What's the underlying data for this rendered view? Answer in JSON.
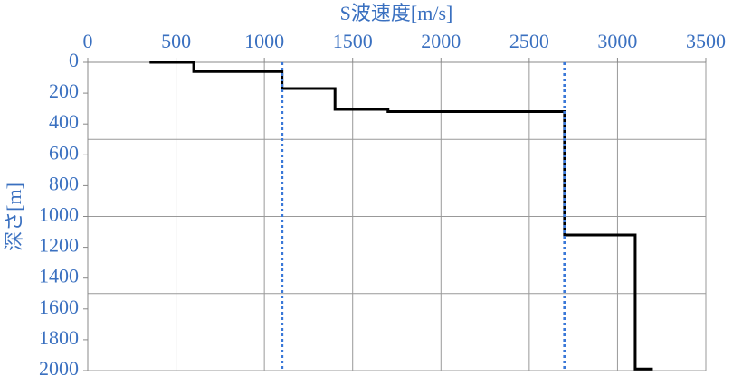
{
  "chart_data": {
    "type": "line",
    "x_label": "S波速度[m/s]",
    "y_label": "深さ[m]",
    "xlim": [
      0,
      3500
    ],
    "xticks": [
      0,
      500,
      1000,
      1500,
      2000,
      2500,
      3000,
      3500
    ],
    "ylim": [
      0,
      2000
    ],
    "yticks": [
      0,
      200,
      400,
      600,
      800,
      1000,
      1200,
      1400,
      1600,
      1800,
      2000
    ],
    "y_inverted": true,
    "x_axis_position": "top",
    "ygrid": [
      0,
      500,
      1000,
      1500,
      2000
    ],
    "xgrid": true,
    "series": [
      {
        "color": "#000000",
        "dashed": false,
        "x": [
          350,
          600,
          600,
          1100,
          1100,
          1400,
          1400,
          1700,
          1700,
          2700,
          2700,
          3100,
          3100,
          3200
        ],
        "values": [
          0,
          0,
          60,
          60,
          170,
          170,
          305,
          305,
          320,
          320,
          1120,
          1120,
          1990,
          1990
        ]
      },
      {
        "color": "#3a78d8",
        "dashed": true,
        "x": [
          1100,
          1100
        ],
        "values": [
          0,
          2000
        ]
      },
      {
        "color": "#3a78d8",
        "dashed": true,
        "x": [
          2700,
          2700
        ],
        "values": [
          0,
          2000
        ]
      }
    ]
  }
}
